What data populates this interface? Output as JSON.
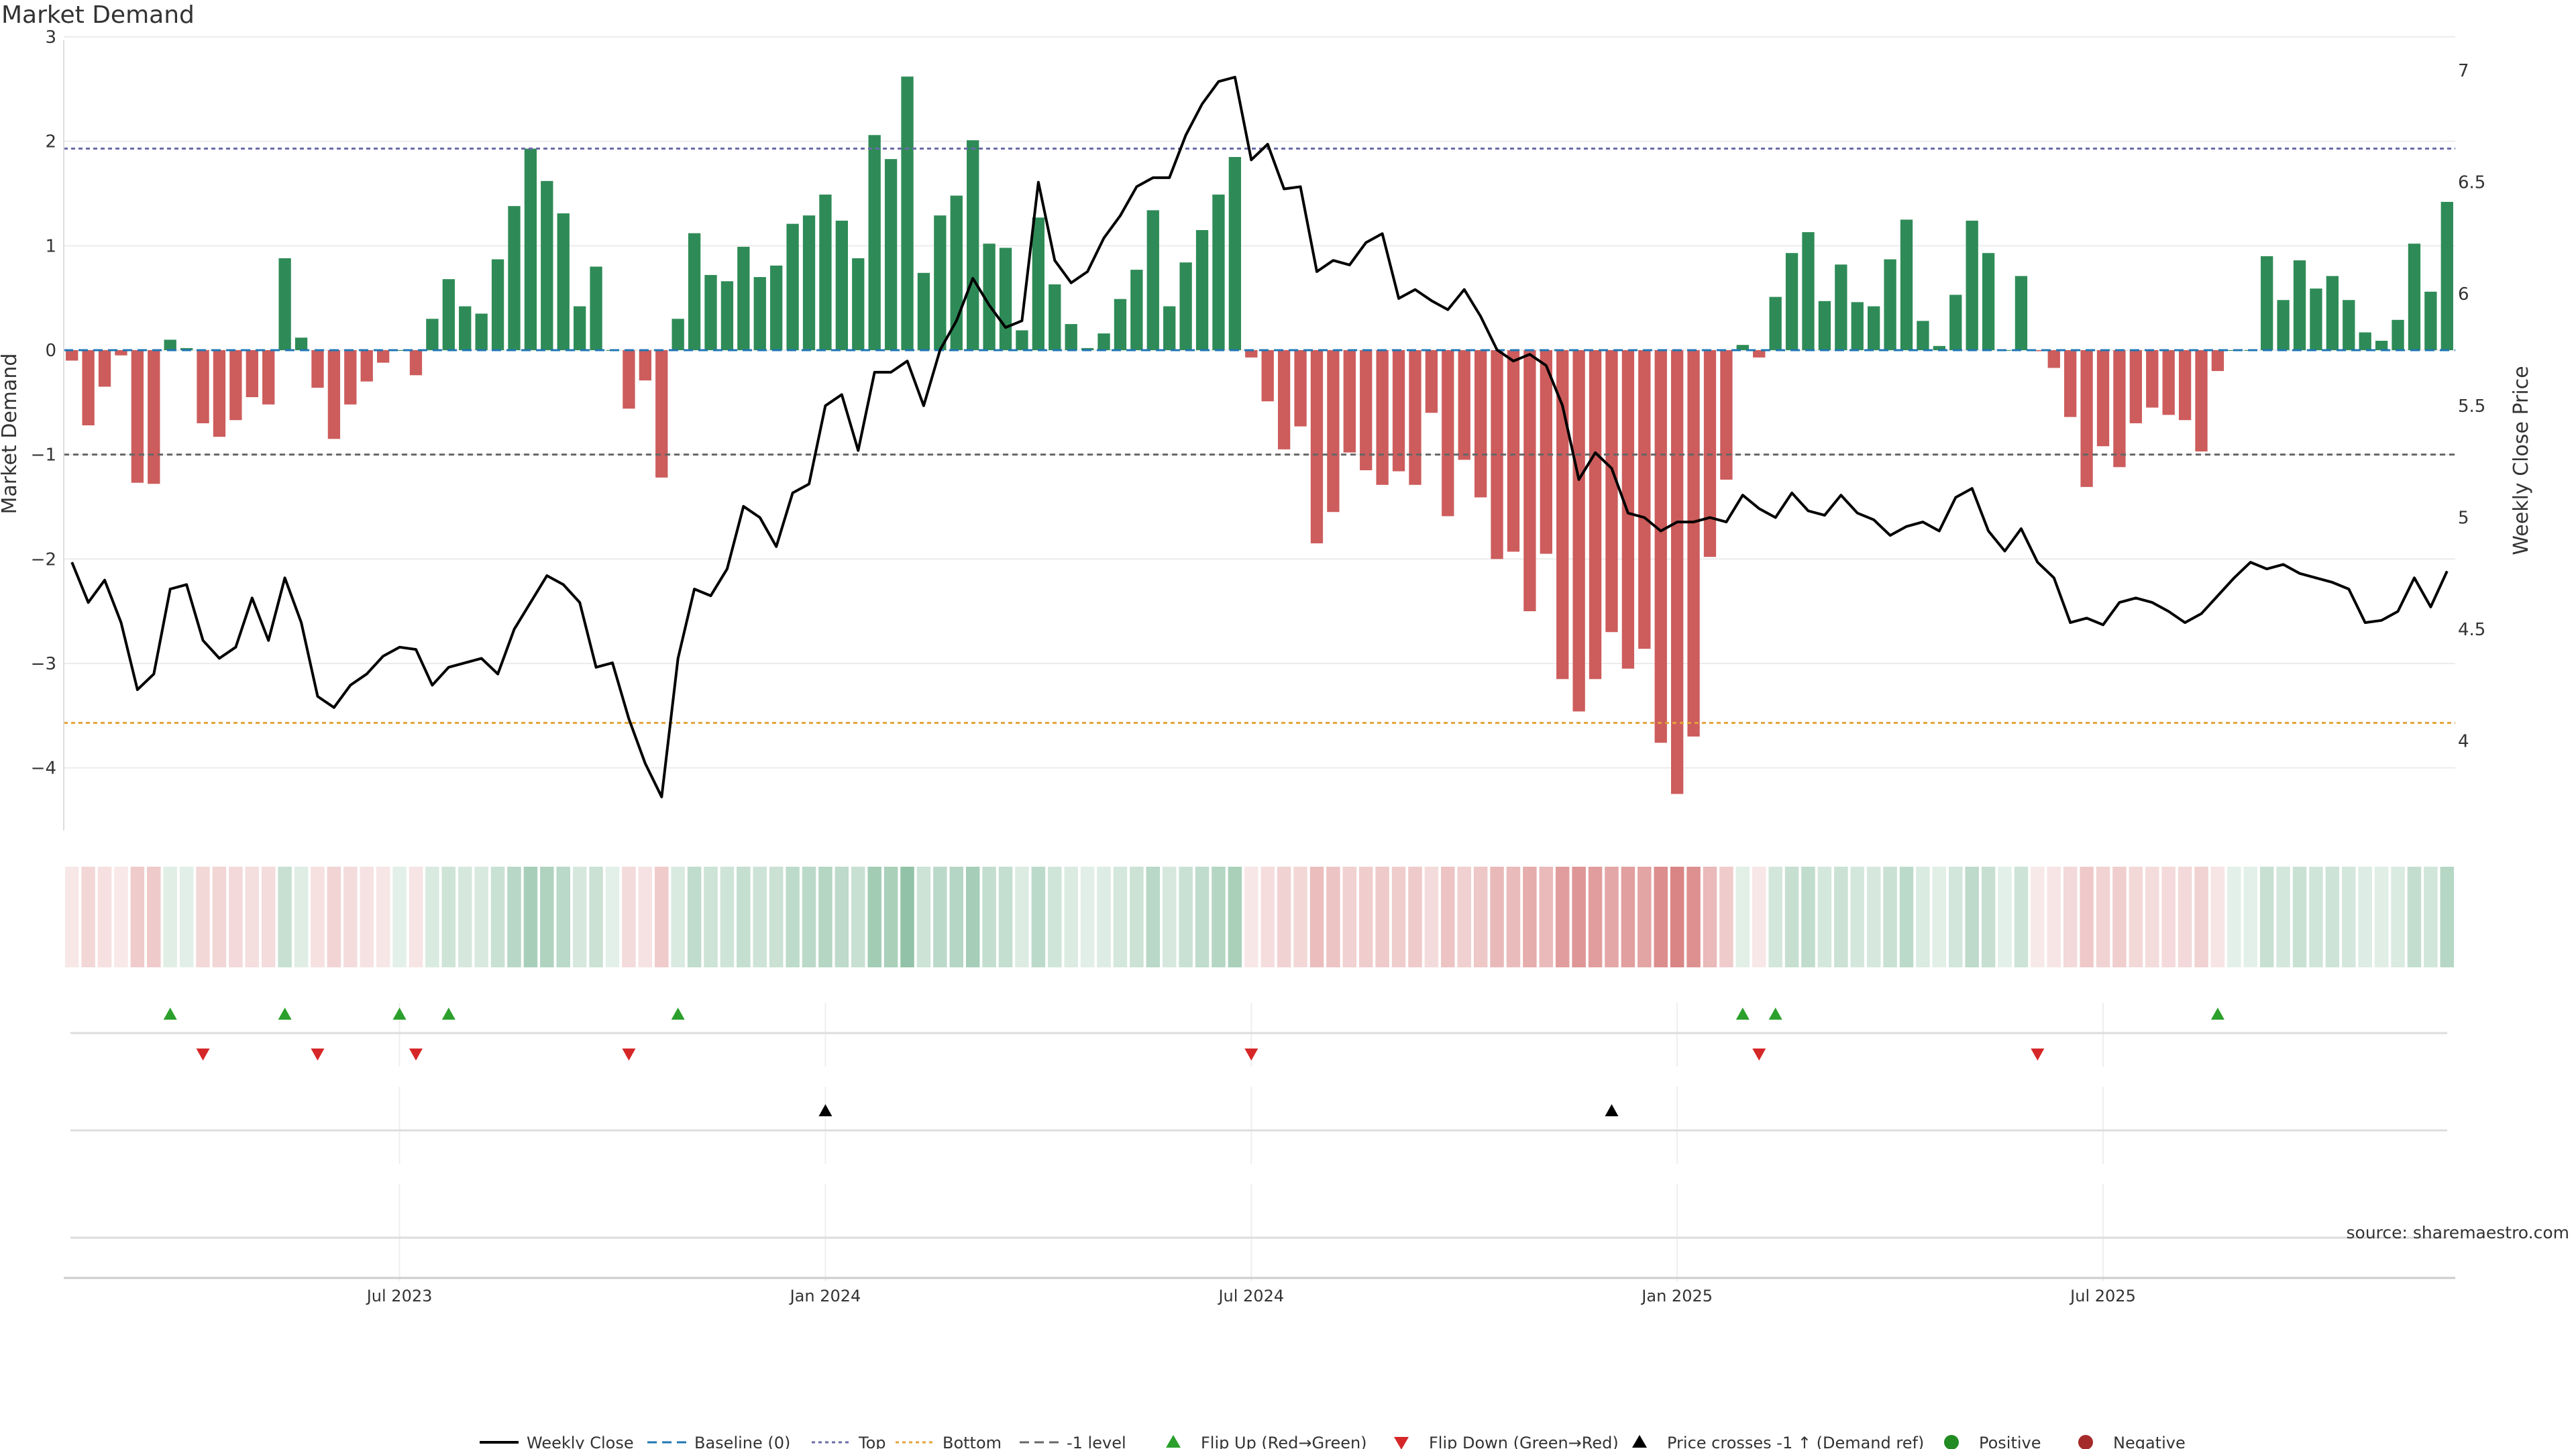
{
  "title": "Market Demand",
  "source": "source: sharemaestro.com",
  "colors": {
    "positive": "#2e8b57",
    "negative": "#cd5c5c",
    "price": "#000000",
    "baseline": "#1f77b4",
    "top": "#6b6baa",
    "bottom": "#e3a33a",
    "minus_one": "#666666",
    "flip_up": "#2ca02c",
    "flip_down": "#d62728",
    "cross": "#000000",
    "dot_positive": "#228b22",
    "dot_negative": "#a52a2a"
  },
  "chart_data": {
    "type": "bar",
    "title": "Market Demand",
    "ylabel": "Market Demand",
    "y2label": "Weekly Close Price",
    "ylim": [
      -4.6,
      3.0
    ],
    "yticks": [
      -4,
      -3,
      -2,
      -1,
      0,
      1,
      2,
      3
    ],
    "ytick_labels": [
      "−4",
      "−3",
      "−2",
      "−1",
      "0",
      "1",
      "2",
      "3"
    ],
    "y2lim": [
      3.6,
      7.15
    ],
    "y2ticks": [
      4,
      4.5,
      5,
      5.5,
      6,
      6.5,
      7
    ],
    "y2tick_labels": [
      "4",
      "4.5",
      "5",
      "5.5",
      "6",
      "6.5",
      "7"
    ],
    "x_ticks": [
      {
        "label": "Jul 2023",
        "week": 20
      },
      {
        "label": "Jan 2024",
        "week": 46
      },
      {
        "label": "Jul 2024",
        "week": 72
      },
      {
        "label": "Jan 2025",
        "week": 98
      },
      {
        "label": "Jul 2025",
        "week": 124
      }
    ],
    "reference_lines": {
      "baseline": 0,
      "top": 1.93,
      "bottom": -3.57,
      "minus_one_level": -1.0
    },
    "demand": [
      -0.1,
      -0.72,
      -0.35,
      -0.05,
      -1.27,
      -1.28,
      0.1,
      0.02,
      -0.7,
      -0.83,
      -0.67,
      -0.45,
      -0.52,
      0.88,
      0.12,
      -0.36,
      -0.85,
      -0.52,
      -0.3,
      -0.12,
      0.0,
      -0.24,
      0.3,
      0.68,
      0.42,
      0.35,
      0.87,
      1.38,
      1.93,
      1.62,
      1.31,
      0.42,
      0.8,
      0.0,
      -0.56,
      -0.29,
      -1.22,
      0.3,
      1.12,
      0.72,
      0.66,
      0.99,
      0.7,
      0.81,
      1.21,
      1.29,
      1.49,
      1.24,
      0.88,
      2.06,
      1.83,
      2.62,
      0.74,
      1.29,
      1.48,
      2.01,
      1.02,
      0.98,
      0.19,
      1.27,
      0.63,
      0.25,
      0.02,
      0.16,
      0.49,
      0.77,
      1.34,
      0.42,
      0.84,
      1.15,
      1.49,
      1.85,
      -0.07,
      -0.49,
      -0.95,
      -0.73,
      -1.85,
      -1.55,
      -0.98,
      -1.15,
      -1.29,
      -1.16,
      -1.29,
      -0.6,
      -1.59,
      -1.05,
      -1.41,
      -2.0,
      -1.93,
      -2.5,
      -1.95,
      -3.15,
      -3.46,
      -3.15,
      -2.7,
      -3.05,
      -2.86,
      -3.76,
      -4.25,
      -3.7,
      -1.98,
      -1.24,
      0.05,
      -0.07,
      0.51,
      0.93,
      1.13,
      0.47,
      0.82,
      0.46,
      0.42,
      0.87,
      1.25,
      0.28,
      0.04,
      0.53,
      1.24,
      0.93,
      0.0,
      0.71,
      -0.01,
      -0.17,
      -0.64,
      -1.31,
      -0.92,
      -1.12,
      -0.7,
      -0.55,
      -0.62,
      -0.67,
      -0.97,
      -0.2,
      0.0,
      0.0,
      0.9,
      0.48,
      0.86,
      0.59,
      0.71,
      0.48,
      0.17,
      0.09,
      0.29,
      1.02,
      0.56,
      1.42
    ],
    "price": [
      4.8,
      4.62,
      4.72,
      4.53,
      4.23,
      4.3,
      4.68,
      4.7,
      4.45,
      4.37,
      4.42,
      4.64,
      4.45,
      4.73,
      4.53,
      4.2,
      4.15,
      4.25,
      4.3,
      4.38,
      4.42,
      4.41,
      4.25,
      4.33,
      4.35,
      4.37,
      4.3,
      4.5,
      4.62,
      4.74,
      4.7,
      4.62,
      4.33,
      4.35,
      4.1,
      3.9,
      3.75,
      4.37,
      4.68,
      4.65,
      4.77,
      5.05,
      5.0,
      4.87,
      5.11,
      5.15,
      5.5,
      5.55,
      5.3,
      5.65,
      5.65,
      5.7,
      5.5,
      5.75,
      5.88,
      6.07,
      5.95,
      5.85,
      5.88,
      6.5,
      6.15,
      6.05,
      6.1,
      6.25,
      6.35,
      6.48,
      6.52,
      6.52,
      6.71,
      6.85,
      6.95,
      6.97,
      6.6,
      6.67,
      6.47,
      6.48,
      6.1,
      6.15,
      6.13,
      6.23,
      6.27,
      5.98,
      6.02,
      5.97,
      5.93,
      6.02,
      5.9,
      5.75,
      5.7,
      5.73,
      5.68,
      5.5,
      5.17,
      5.29,
      5.22,
      5.02,
      5.0,
      4.94,
      4.98,
      4.98,
      5.0,
      4.98,
      5.1,
      5.04,
      5.0,
      5.11,
      5.03,
      5.01,
      5.1,
      5.02,
      4.99,
      4.92,
      4.96,
      4.98,
      4.94,
      5.09,
      5.13,
      4.94,
      4.85,
      4.95,
      4.8,
      4.73,
      4.53,
      4.55,
      4.52,
      4.62,
      4.64,
      4.62,
      4.58,
      4.53,
      4.57,
      4.65,
      4.73,
      4.8,
      4.77,
      4.79,
      4.75,
      4.73,
      4.71,
      4.68,
      4.53,
      4.54,
      4.58,
      4.73,
      4.6,
      4.76
    ],
    "flip_up_weeks": [
      6,
      13,
      20,
      23,
      37,
      102,
      104,
      131
    ],
    "flip_down_weeks": [
      8,
      15,
      21,
      34,
      72,
      103,
      120
    ],
    "price_cross_weeks": [
      46,
      94
    ]
  },
  "legend": [
    {
      "label": "Weekly Close",
      "kind": "line",
      "color": "#000000"
    },
    {
      "label": "Baseline (0)",
      "kind": "dash",
      "color": "#1f77b4"
    },
    {
      "label": "Top",
      "kind": "dot",
      "color": "#6b6baa"
    },
    {
      "label": "Bottom",
      "kind": "dot",
      "color": "#e3a33a"
    },
    {
      "label": "-1 level",
      "kind": "dash",
      "color": "#666666"
    },
    {
      "label": "Flip Up (Red→Green)",
      "kind": "tri-up",
      "color": "#2ca02c"
    },
    {
      "label": "Flip Down (Green→Red)",
      "kind": "tri-down",
      "color": "#d62728"
    },
    {
      "label": "Price crosses -1 ↑ (Demand ref)",
      "kind": "tri-up",
      "color": "#000000"
    },
    {
      "label": "Positive",
      "kind": "dot-circle",
      "color": "#228b22"
    },
    {
      "label": "Negative",
      "kind": "dot-circle",
      "color": "#a52a2a"
    }
  ]
}
